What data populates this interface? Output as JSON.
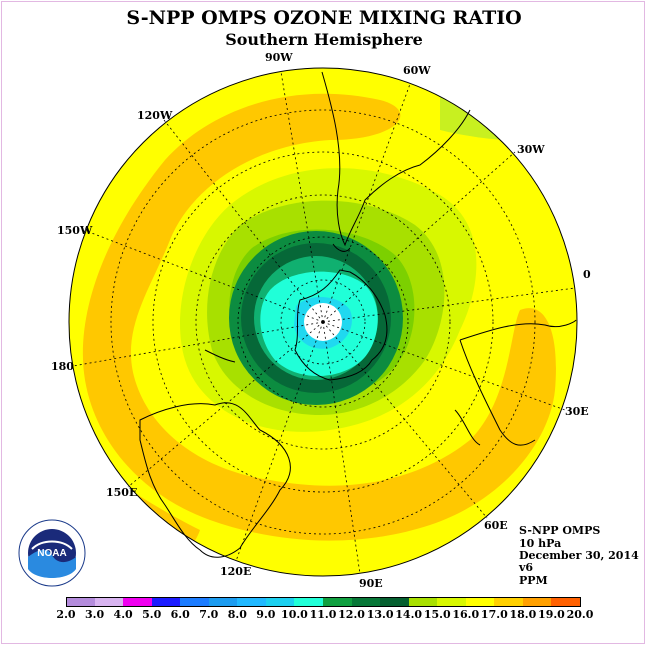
{
  "header": {
    "title": "S-NPP OMPS OZONE MIXING RATIO",
    "subtitle": "Southern Hemisphere"
  },
  "map": {
    "projection": "south-polar-stereographic",
    "longitude_labels": [
      {
        "id": "90w",
        "text": "90W"
      },
      {
        "id": "60w",
        "text": "60W"
      },
      {
        "id": "30w",
        "text": "30W"
      },
      {
        "id": "0",
        "text": "0"
      },
      {
        "id": "30e",
        "text": "30E"
      },
      {
        "id": "60e",
        "text": "60E"
      },
      {
        "id": "90e",
        "text": "90E"
      },
      {
        "id": "120e",
        "text": "120E"
      },
      {
        "id": "150e",
        "text": "150E"
      },
      {
        "id": "180",
        "text": "180"
      },
      {
        "id": "150w",
        "text": "150W"
      },
      {
        "id": "120w",
        "text": "120W"
      }
    ]
  },
  "info": {
    "instrument": "S-NPP OMPS",
    "level": "10 hPa",
    "date": "December 30, 2014",
    "version": "v6",
    "units": "PPM"
  },
  "logo": {
    "text": "NOAA",
    "name": "noaa-logo"
  },
  "colorbar": {
    "ticks": [
      "2.0",
      "3.0",
      "4.0",
      "5.0",
      "6.0",
      "7.0",
      "8.0",
      "9.0",
      "10.0",
      "11.0",
      "12.0",
      "13.0",
      "14.0",
      "15.0",
      "16.0",
      "17.0",
      "18.0",
      "19.0",
      "20.0"
    ],
    "colors": [
      "#b48cdc",
      "#d8b4f0",
      "#f000f0",
      "#1c1cff",
      "#1c7cff",
      "#1c9cf0",
      "#20b8ff",
      "#1cd0f0",
      "#20ffd8",
      "#10a040",
      "#087838",
      "#066030",
      "#a8e000",
      "#d8f800",
      "#ffff00",
      "#ffd000",
      "#ffa000",
      "#ff6000",
      "#ff0000",
      "#a06040"
    ]
  },
  "levels": {
    "background": "#ffff00",
    "orange": "#ffc800",
    "yellow_green": "#d8f800",
    "light_green": "#a8e000",
    "green": "#7cd000",
    "dark_green_1": "#0c8c40",
    "dark_green_2": "#066838",
    "teal_green": "#10b070",
    "cyan": "#20ffd8",
    "light_cyan": "#20d8f0",
    "blue_hole": "#40c0ff"
  }
}
